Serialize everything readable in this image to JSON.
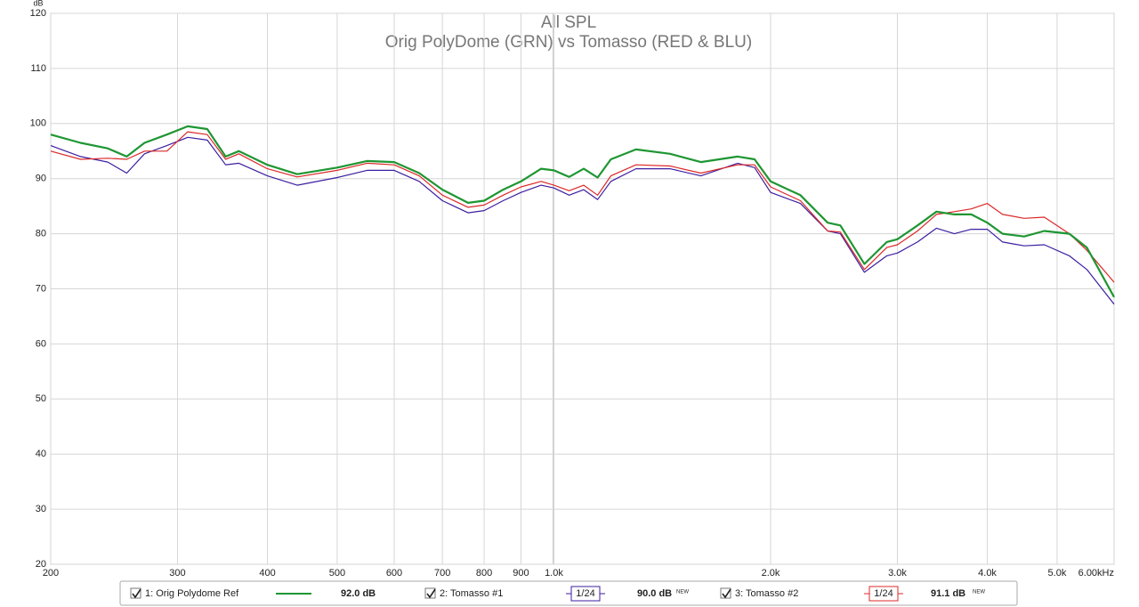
{
  "chart_data": {
    "type": "line",
    "title": "All SPL",
    "subtitle": "Orig PolyDome (GRN) vs Tomasso (RED & BLU)",
    "y_label": "dB",
    "log_x": true,
    "grid": true,
    "xlim": [
      200,
      6000
    ],
    "ylim": [
      20,
      120
    ],
    "xticks": [
      200,
      300,
      400,
      500,
      600,
      700,
      800,
      900,
      {
        "value": 1000,
        "label": "1.0k"
      },
      {
        "value": 2000,
        "label": "2.0k"
      },
      {
        "value": 3000,
        "label": "3.0k"
      },
      {
        "value": 4000,
        "label": "4.0k"
      },
      {
        "value": 5000,
        "label": "5.0k"
      },
      {
        "value": 6000,
        "label": "6.00kHz"
      }
    ],
    "yticks": [
      20,
      30,
      40,
      50,
      60,
      70,
      80,
      90,
      100,
      110,
      120
    ],
    "x": [
      200,
      220,
      240,
      255,
      270,
      290,
      310,
      330,
      350,
      365,
      400,
      440,
      500,
      550,
      600,
      650,
      700,
      760,
      800,
      850,
      900,
      960,
      1000,
      1050,
      1100,
      1150,
      1200,
      1300,
      1450,
      1600,
      1800,
      1900,
      2000,
      2200,
      2400,
      2500,
      2700,
      2900,
      3000,
      3200,
      3400,
      3600,
      3800,
      4000,
      4200,
      4500,
      4800,
      5200,
      5500,
      6000
    ],
    "series": [
      {
        "name": "1: Orig Polydome Ref",
        "color": "#1e9632",
        "width": 2.2,
        "readout": "92.0 dB",
        "values": [
          98,
          96.5,
          95.5,
          94,
          96.5,
          98,
          99.5,
          99,
          94,
          95,
          92.5,
          90.8,
          92,
          93.2,
          93,
          91,
          88,
          85.6,
          86,
          88,
          89.5,
          91.8,
          91.5,
          90.3,
          91.8,
          90.2,
          93.5,
          95.3,
          94.5,
          93,
          94,
          93.5,
          89.5,
          87,
          82,
          81.5,
          74.5,
          78.5,
          79,
          81.5,
          84,
          83.5,
          83.5,
          82,
          80,
          79.5,
          80.5,
          80,
          77.5,
          68.5
        ]
      },
      {
        "name": "2: Tomasso #1",
        "color": "#3c1ea0",
        "width": 1.2,
        "readout": "90.0 dB",
        "smoothing": "1/24",
        "badge": "NEW",
        "values": [
          96,
          94,
          93,
          91,
          94.5,
          96,
          97.5,
          97,
          92.5,
          92.8,
          90.5,
          88.8,
          90.2,
          91.5,
          91.5,
          89.5,
          86,
          83.8,
          84.2,
          86,
          87.5,
          88.8,
          88.3,
          87,
          88,
          86.2,
          89.5,
          91.8,
          91.8,
          90.5,
          92.8,
          92,
          87.5,
          85.5,
          80.5,
          80,
          73,
          76,
          76.5,
          78.5,
          81,
          80,
          80.8,
          80.8,
          78.5,
          77.8,
          78,
          76,
          73.5,
          67.2
        ]
      },
      {
        "name": "3: Tomasso #2",
        "color": "#dc2828",
        "width": 1.2,
        "readout": "91.1 dB",
        "smoothing": "1/24",
        "badge": "NEW",
        "values": [
          95,
          93.5,
          93.7,
          93.5,
          95,
          95,
          98.5,
          98,
          93.5,
          94.5,
          91.8,
          90.3,
          91.5,
          92.8,
          92.5,
          90.5,
          87,
          84.8,
          85.2,
          87,
          88.5,
          89.5,
          88.8,
          87.8,
          88.8,
          87,
          90.5,
          92.5,
          92.3,
          91,
          92.5,
          92.5,
          88.5,
          86,
          80.5,
          80.3,
          73.5,
          77.5,
          78,
          80.5,
          83.5,
          84,
          84.5,
          85.5,
          83.5,
          82.8,
          83,
          80,
          77,
          71.2
        ]
      }
    ]
  }
}
